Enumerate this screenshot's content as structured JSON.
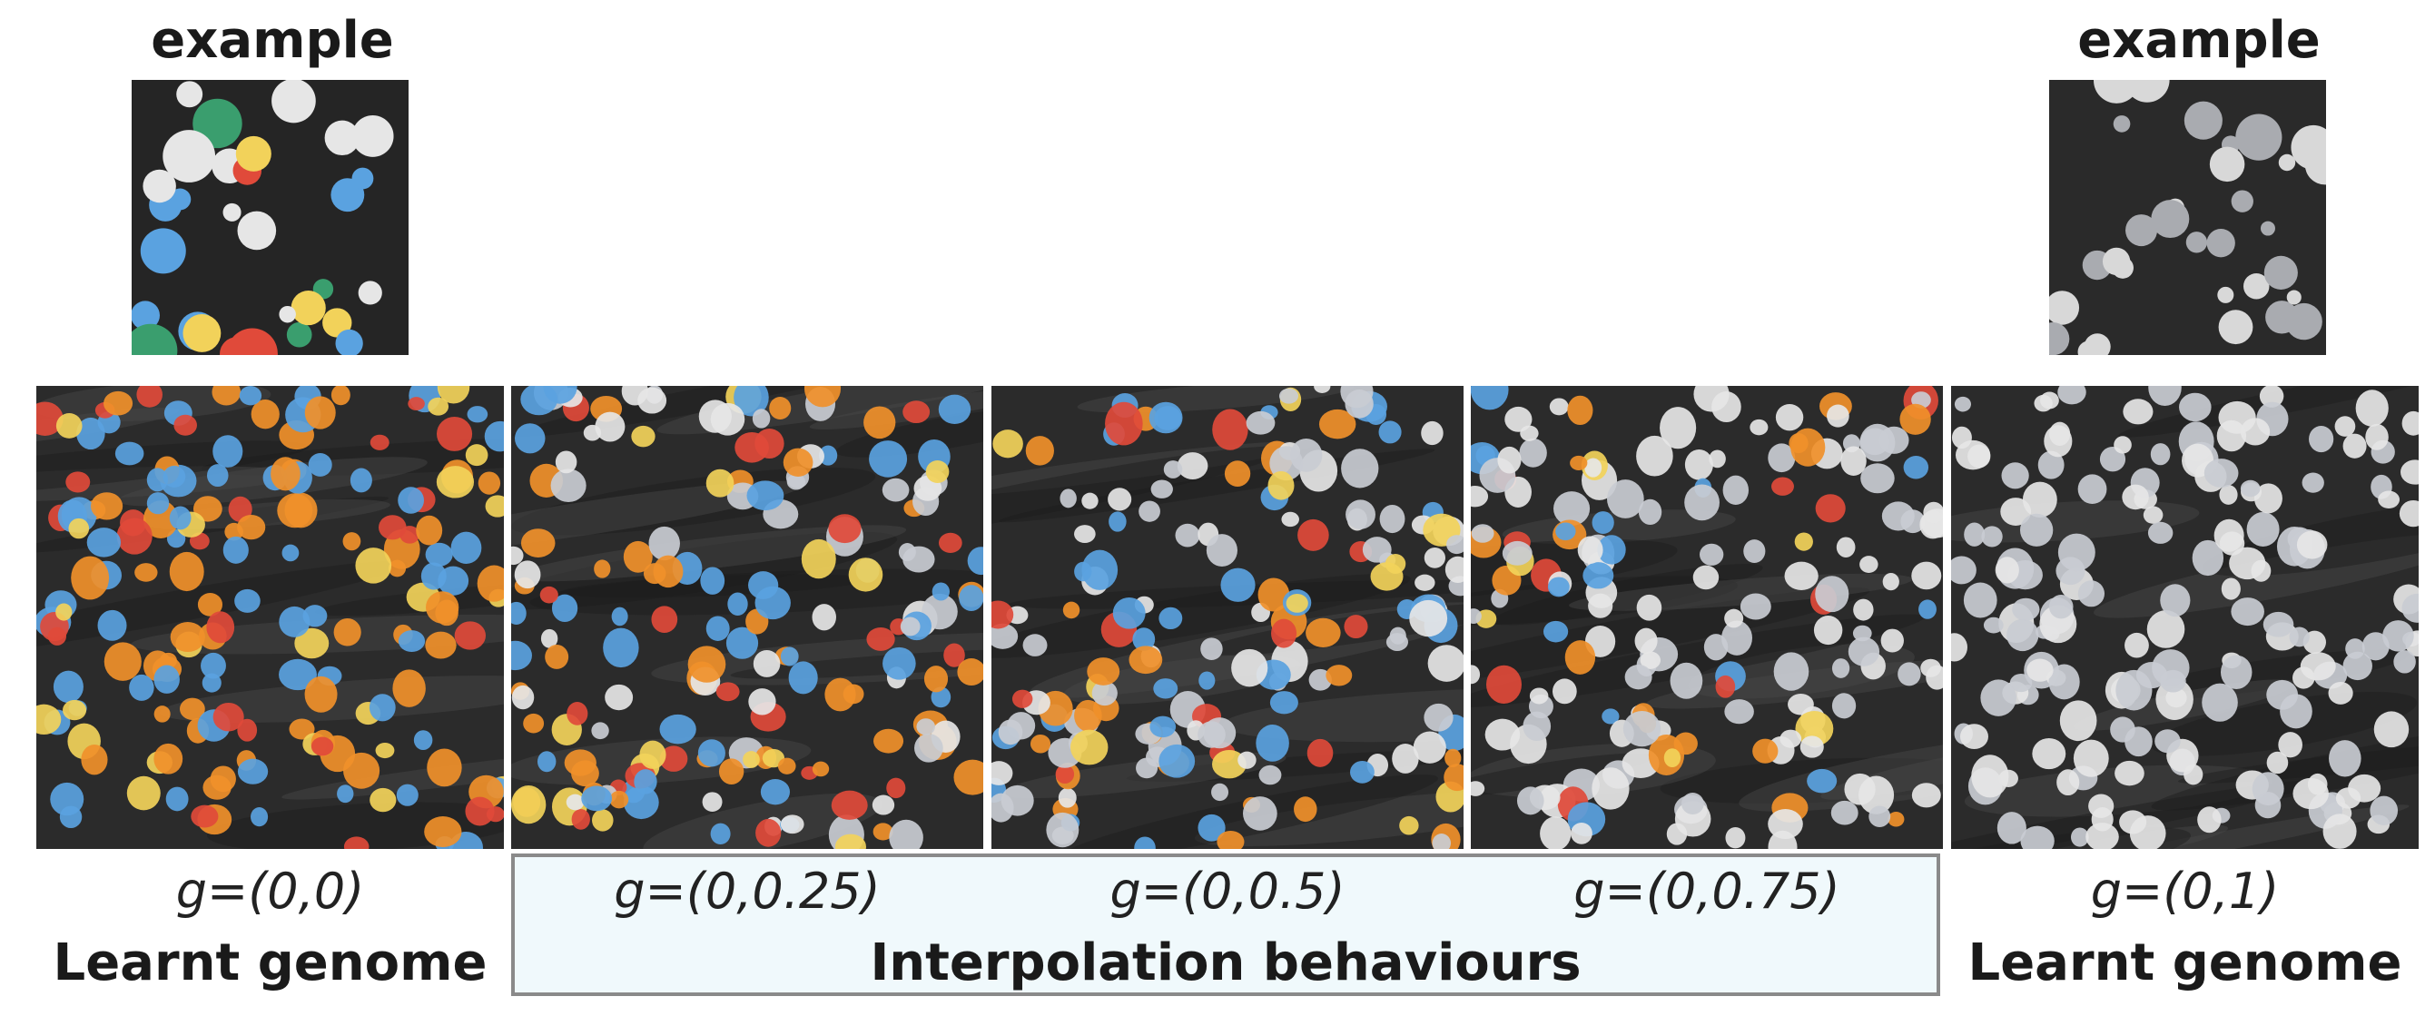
{
  "examples": [
    {
      "label": "example",
      "palette": "colored"
    },
    {
      "label": "example",
      "palette": "gray"
    }
  ],
  "panels": [
    {
      "g_label": "g=(0,0)",
      "mix": 0
    },
    {
      "g_label": "g=(0,0.25)",
      "mix": 0.25
    },
    {
      "g_label": "g=(0,0.5)",
      "mix": 0.5
    },
    {
      "g_label": "g=(0,0.75)",
      "mix": 0.75
    },
    {
      "g_label": "g=(0,1)",
      "mix": 1
    }
  ],
  "captions": {
    "left": "Learnt genome",
    "middle": "Interpolation behaviours",
    "right": "Learnt genome"
  },
  "colors": {
    "background_dark": "#2b2b2b",
    "box_fill": "#f0f9fc",
    "box_border": "#8a8a8a",
    "dot_blue": "#5aa2e0",
    "dot_orange": "#f0902a",
    "dot_yellow": "#f2d25a",
    "dot_red": "#e04a3a",
    "dot_green": "#3a9e6e",
    "dot_white": "#e6e6e6"
  }
}
